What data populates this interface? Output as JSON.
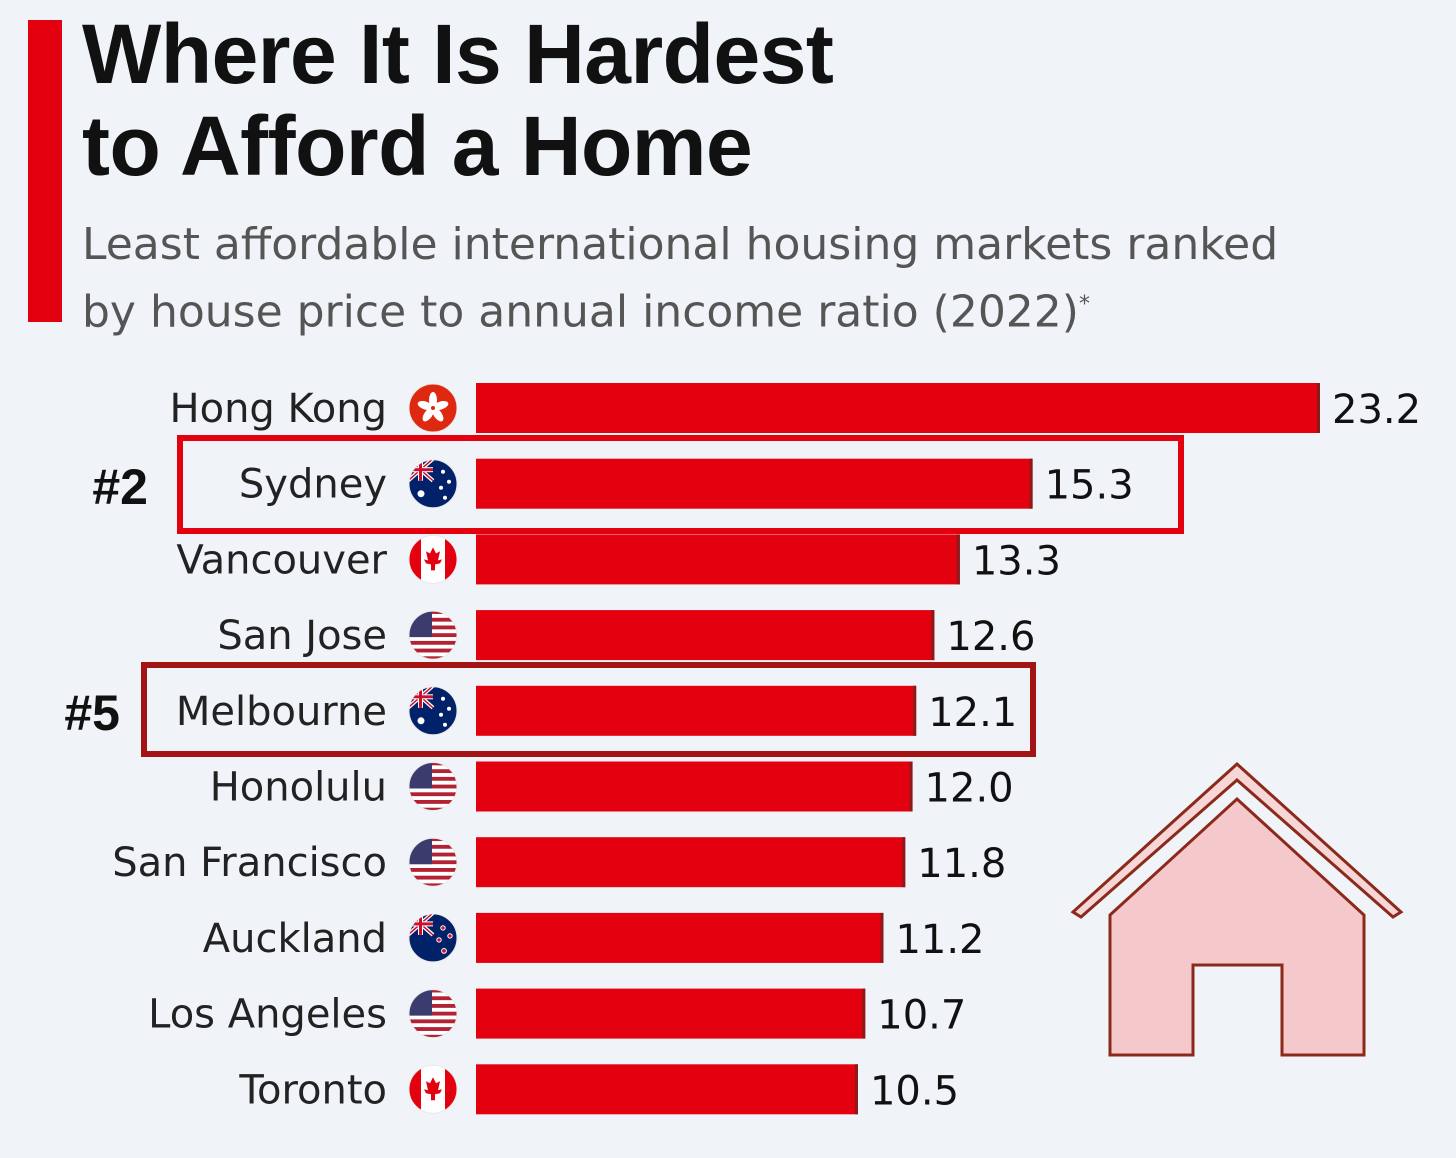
{
  "header": {
    "title_line1": "Where It Is Hardest",
    "title_line2": "to Afford a Home",
    "subtitle_line1": "Least affordable international housing markets ranked",
    "subtitle_line2": "by house price to annual income ratio (2022)",
    "subtitle_marker": "*"
  },
  "colors": {
    "accent": "#e3000f",
    "bar": "#e3000f",
    "bar_edge": "#8b1a1a",
    "house_fill": "#f5c9cc",
    "house_stroke": "#8b2a1a"
  },
  "highlights": [
    {
      "rank_label": "#2",
      "city": "Sydney"
    },
    {
      "rank_label": "#5",
      "city": "Melbourne"
    }
  ],
  "chart_data": {
    "type": "bar",
    "orientation": "horizontal",
    "title": "Where It Is Hardest to Afford a Home",
    "subtitle": "Least affordable international housing markets ranked by house price to annual income ratio (2022)*",
    "categories": [
      "Hong Kong",
      "Sydney",
      "Vancouver",
      "San Jose",
      "Melbourne",
      "Honolulu",
      "San Francisco",
      "Auckland",
      "Los Angeles",
      "Toronto"
    ],
    "values": [
      23.2,
      15.3,
      13.3,
      12.6,
      12.1,
      12.0,
      11.8,
      11.2,
      10.7,
      10.5
    ],
    "value_labels": [
      "23.2",
      "15.3",
      "13.3",
      "12.6",
      "12.1",
      "12.0",
      "11.8",
      "11.2",
      "10.7",
      "10.5"
    ],
    "flags": [
      "hong-kong-flag",
      "australia-flag",
      "canada-flag",
      "usa-flag",
      "australia-flag",
      "usa-flag",
      "usa-flag",
      "new-zealand-flag",
      "usa-flag",
      "canada-flag"
    ],
    "xlabel": "",
    "ylabel": "",
    "xlim": [
      0,
      23.2
    ],
    "grid": false,
    "legend": "none"
  }
}
